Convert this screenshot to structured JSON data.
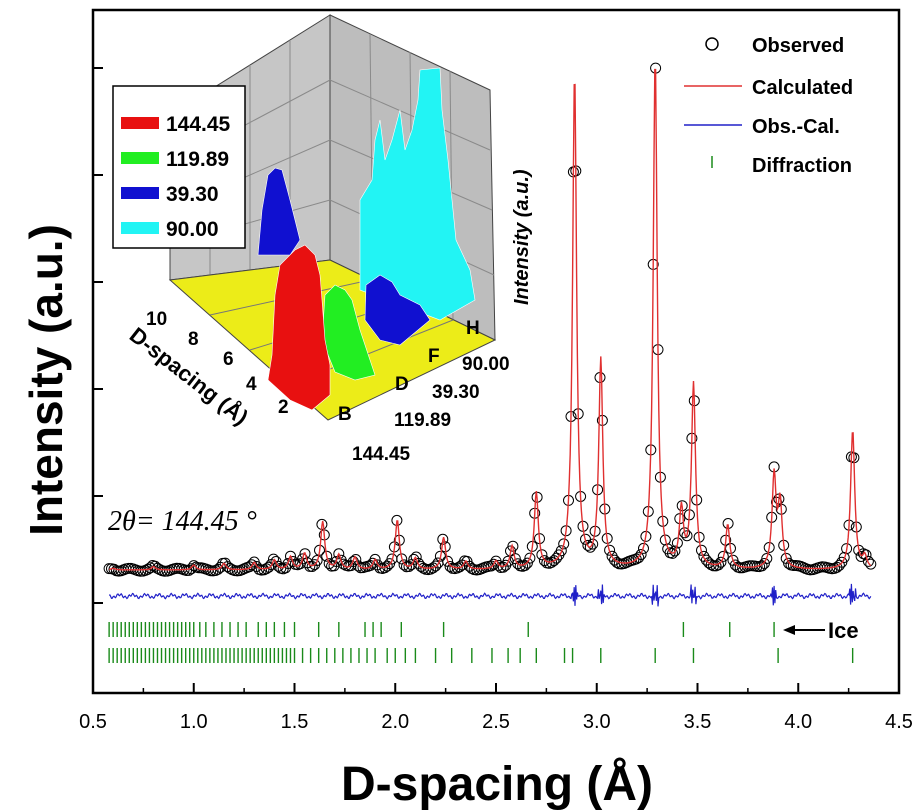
{
  "chart_data": {
    "type": "line",
    "title": "",
    "xlabel": "D-spacing (Å)",
    "ylabel": "Intensity (a.u.)",
    "xlim": [
      0.5,
      4.5
    ],
    "xticks": [
      "0.5",
      "1.0",
      "1.5",
      "2.0",
      "2.5",
      "3.0",
      "3.5",
      "4.0",
      "4.5"
    ],
    "annotation_theta": "2θ= 144.45 °",
    "ice_label": "Ice",
    "legend": [
      {
        "name": "Observed",
        "color": "#000000"
      },
      {
        "name": "Calculated",
        "color": "#e03030"
      },
      {
        "name": "Obs.-Cal.",
        "color": "#2020c8"
      },
      {
        "name": "Diffraction",
        "color": "#1a8a1a"
      }
    ],
    "peaks": [
      {
        "x": 0.6,
        "y": 2
      },
      {
        "x": 0.8,
        "y": 4
      },
      {
        "x": 1.0,
        "y": 6
      },
      {
        "x": 1.15,
        "y": 8
      },
      {
        "x": 1.3,
        "y": 9
      },
      {
        "x": 1.4,
        "y": 12
      },
      {
        "x": 1.48,
        "y": 16
      },
      {
        "x": 1.55,
        "y": 20
      },
      {
        "x": 1.64,
        "y": 60
      },
      {
        "x": 1.72,
        "y": 18
      },
      {
        "x": 1.8,
        "y": 15
      },
      {
        "x": 1.9,
        "y": 12
      },
      {
        "x": 2.01,
        "y": 62
      },
      {
        "x": 2.1,
        "y": 14
      },
      {
        "x": 2.24,
        "y": 40
      },
      {
        "x": 2.35,
        "y": 10
      },
      {
        "x": 2.5,
        "y": 10
      },
      {
        "x": 2.58,
        "y": 28
      },
      {
        "x": 2.7,
        "y": 95
      },
      {
        "x": 2.89,
        "y": 620
      },
      {
        "x": 3.02,
        "y": 260
      },
      {
        "x": 3.29,
        "y": 640
      },
      {
        "x": 3.42,
        "y": 70
      },
      {
        "x": 3.48,
        "y": 230
      },
      {
        "x": 3.65,
        "y": 55
      },
      {
        "x": 3.88,
        "y": 115
      },
      {
        "x": 3.91,
        "y": 80
      },
      {
        "x": 4.27,
        "y": 175
      },
      {
        "x": 4.33,
        "y": 15
      }
    ],
    "diffraction_row1": [
      0.58,
      0.6,
      0.62,
      0.64,
      0.66,
      0.68,
      0.7,
      0.72,
      0.74,
      0.76,
      0.78,
      0.8,
      0.82,
      0.84,
      0.86,
      0.88,
      0.9,
      0.92,
      0.94,
      0.96,
      0.98,
      1.0,
      1.03,
      1.06,
      1.1,
      1.14,
      1.18,
      1.22,
      1.26,
      1.32,
      1.36,
      1.4,
      1.45,
      1.5,
      1.62,
      1.72,
      1.85,
      1.89,
      1.93,
      2.03,
      2.24,
      2.66,
      3.43,
      3.66,
      3.88
    ],
    "diffraction_row2": [
      0.58,
      0.6,
      0.62,
      0.64,
      0.66,
      0.68,
      0.7,
      0.72,
      0.74,
      0.76,
      0.78,
      0.8,
      0.82,
      0.84,
      0.86,
      0.88,
      0.9,
      0.92,
      0.94,
      0.96,
      0.98,
      1.0,
      1.02,
      1.04,
      1.06,
      1.08,
      1.1,
      1.12,
      1.14,
      1.16,
      1.18,
      1.2,
      1.22,
      1.24,
      1.26,
      1.28,
      1.3,
      1.32,
      1.34,
      1.36,
      1.38,
      1.4,
      1.42,
      1.44,
      1.46,
      1.48,
      1.5,
      1.54,
      1.58,
      1.62,
      1.66,
      1.7,
      1.74,
      1.78,
      1.82,
      1.86,
      1.9,
      1.96,
      2.0,
      2.05,
      2.1,
      2.2,
      2.28,
      2.38,
      2.48,
      2.56,
      2.62,
      2.7,
      2.84,
      2.88,
      3.02,
      3.29,
      3.48,
      3.9,
      4.27
    ],
    "inset": {
      "ylabel": "Intensity (a.u.)",
      "xlabel": "D-spacing (Å)",
      "xticks": [
        "10",
        "8",
        "6",
        "4",
        "2"
      ],
      "series_letters": [
        "B",
        "D",
        "F",
        "H"
      ],
      "series_values": [
        "144.45",
        "119.89",
        "39.30",
        "90.00"
      ],
      "legend": [
        {
          "name": "144.45",
          "color": "#e81010"
        },
        {
          "name": "119.89",
          "color": "#22ee22"
        },
        {
          "name": "39.30",
          "color": "#1010d0"
        },
        {
          "name": "90.00",
          "color": "#22f4f4"
        }
      ]
    }
  }
}
